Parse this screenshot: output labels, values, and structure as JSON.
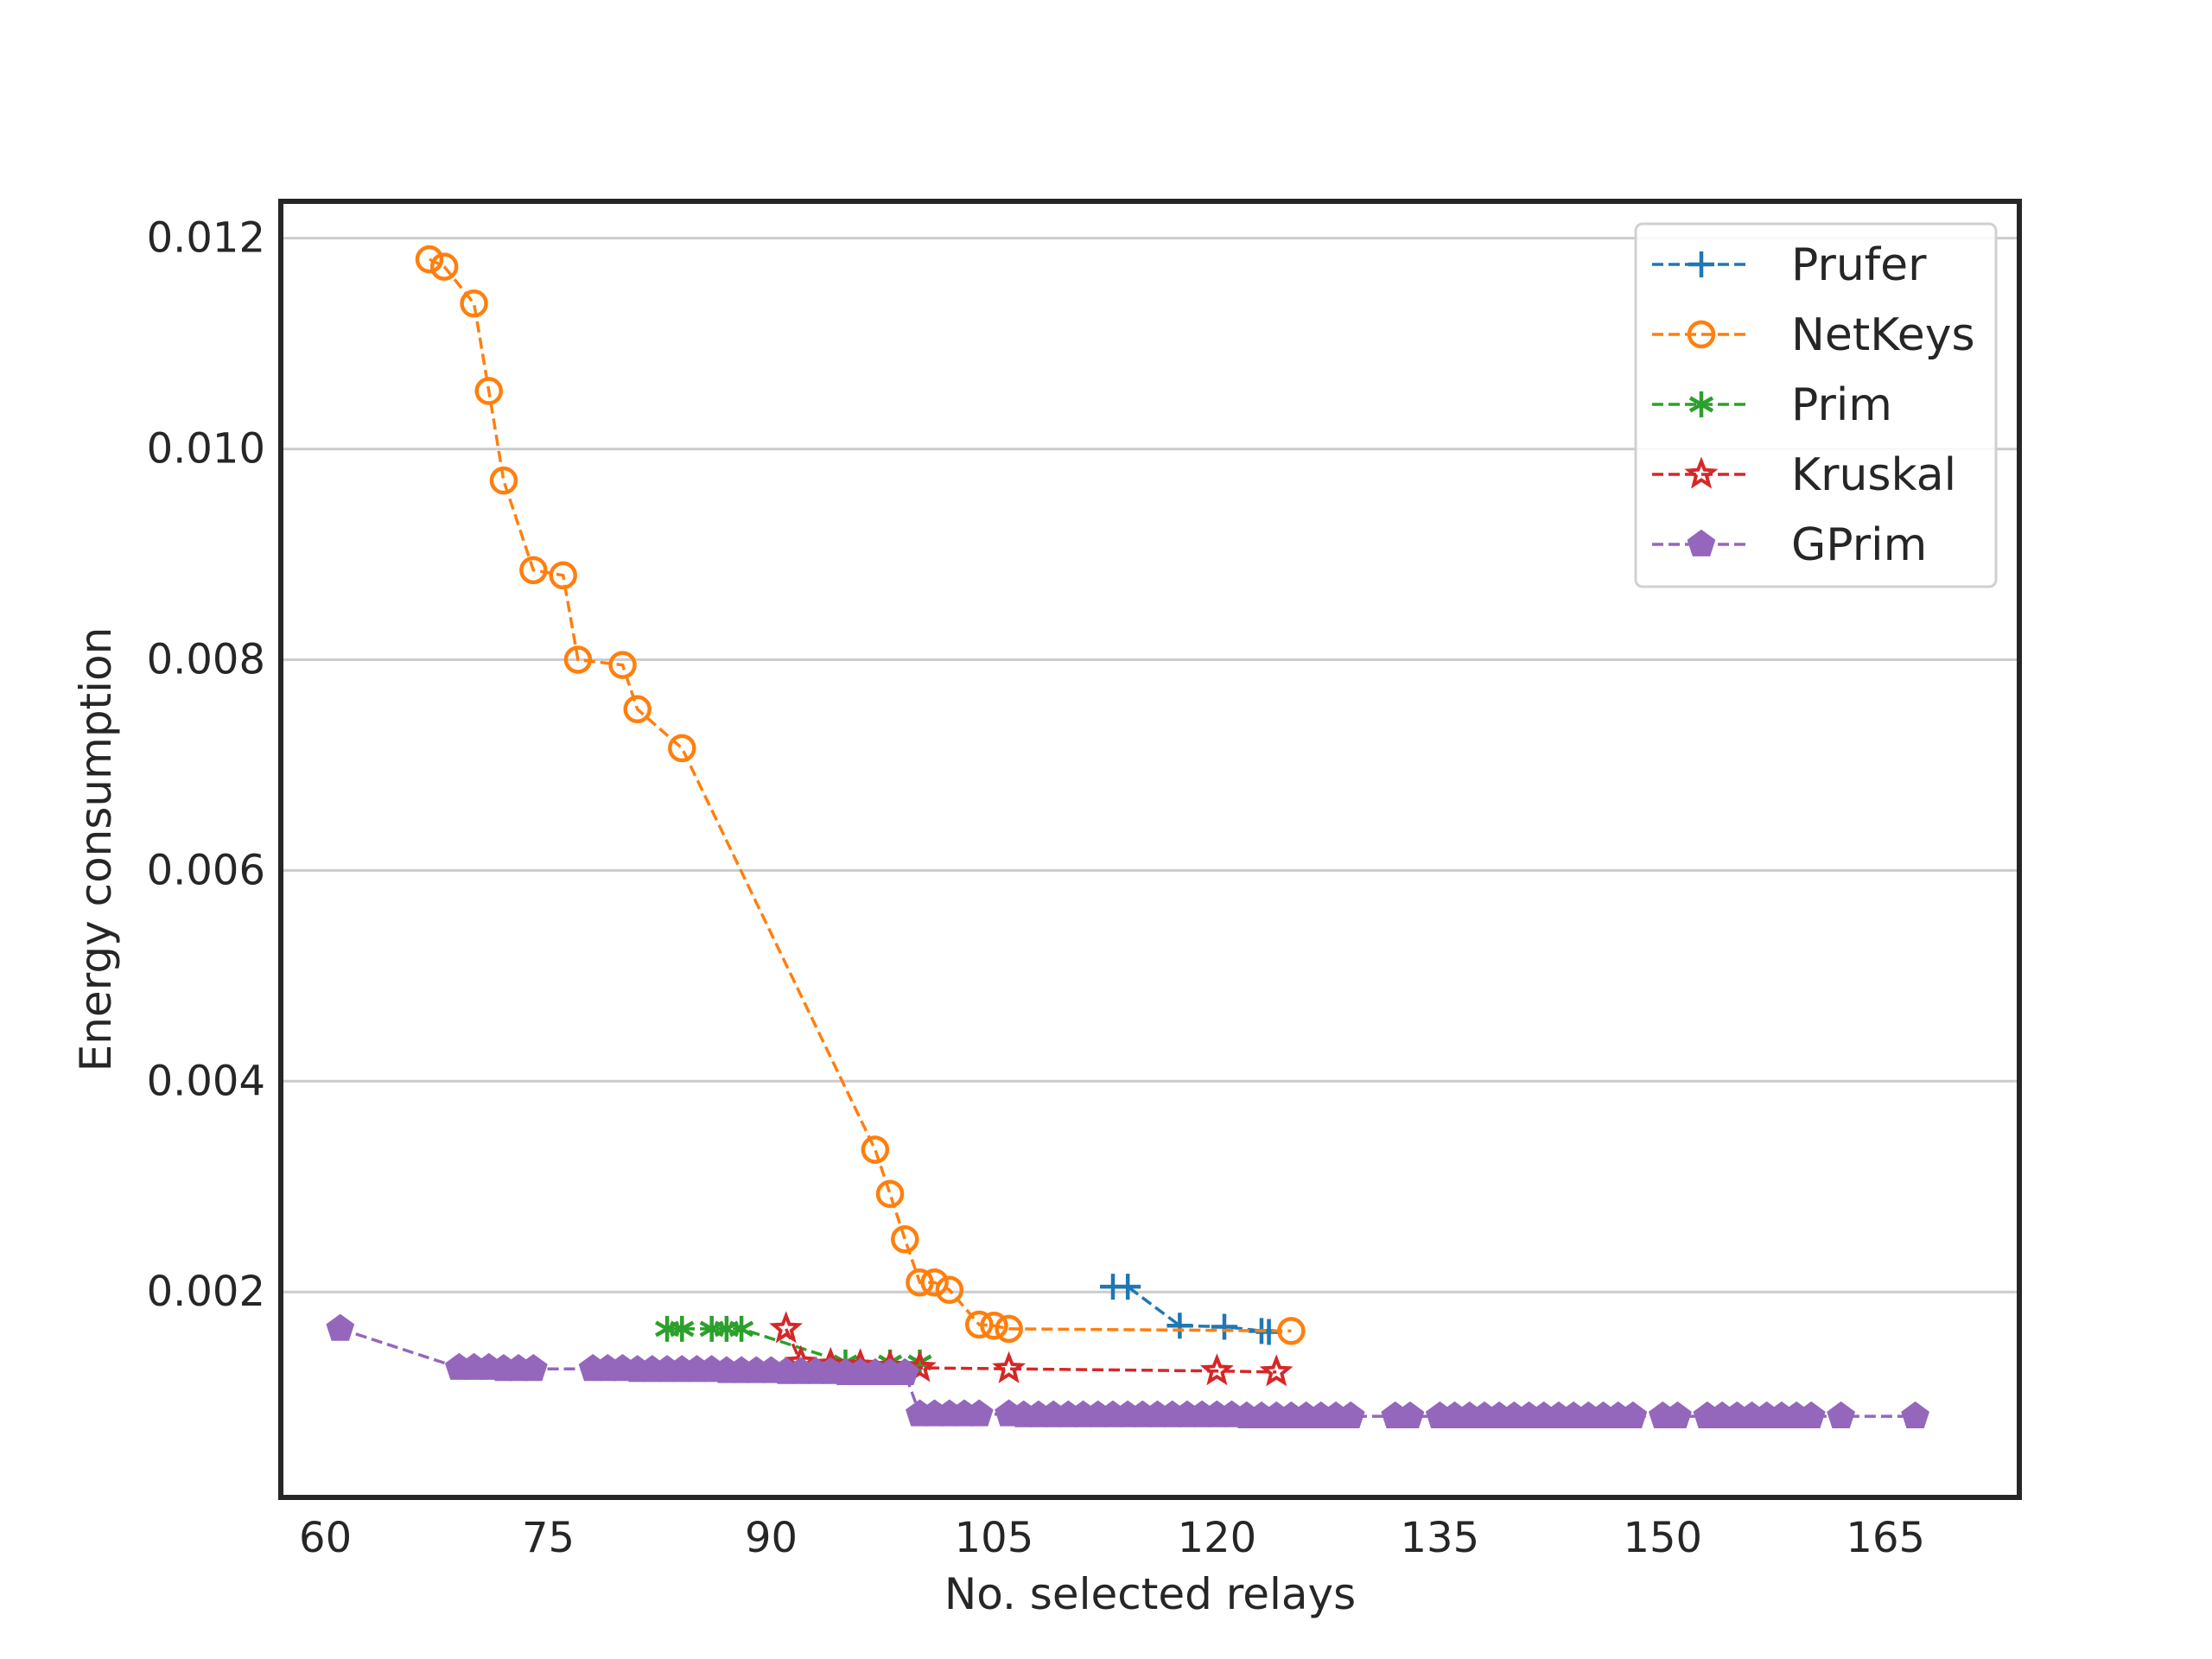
{
  "chart_data": {
    "type": "line",
    "title": "",
    "xlabel": "No. selected relays",
    "ylabel": "Energy consumption",
    "xlim": [
      57,
      174
    ],
    "ylim": [
      5e-05,
      0.01235
    ],
    "xticks": [
      60,
      75,
      90,
      105,
      120,
      135,
      150,
      165
    ],
    "yticks": [
      0.002,
      0.004,
      0.006,
      0.008,
      0.01,
      0.012
    ],
    "ytick_labels": [
      "0.002",
      "0.004",
      "0.006",
      "0.008",
      "0.010",
      "0.012"
    ],
    "grid": "horizontal",
    "legend_position": "top-right",
    "series": [
      {
        "name": "Prufer",
        "color": "#1f77b4",
        "marker": "plus",
        "x": [
          113,
          114,
          117.5,
          120.5,
          123,
          123.5
        ],
        "y": [
          0.00205,
          0.00205,
          0.00168,
          0.00167,
          0.00163,
          0.00162
        ]
      },
      {
        "name": "NetKeys",
        "color": "#ff7f0e",
        "marker": "circle",
        "x": [
          67,
          68,
          70,
          71,
          72,
          74,
          76,
          77,
          80,
          81,
          84,
          97,
          98,
          99,
          100,
          101,
          102,
          104,
          105,
          106,
          125
        ],
        "y": [
          0.0118,
          0.01173,
          0.01138,
          0.01055,
          0.0097,
          0.00885,
          0.0088,
          0.008,
          0.00795,
          0.00753,
          0.00716,
          0.00335,
          0.00293,
          0.0025,
          0.00209,
          0.00209,
          0.00202,
          0.00169,
          0.00168,
          0.00165,
          0.00163
        ]
      },
      {
        "name": "Prim",
        "color": "#2ca02c",
        "marker": "asterisk",
        "x": [
          83,
          84,
          86,
          87,
          88,
          95,
          98,
          100
        ],
        "y": [
          0.00165,
          0.00165,
          0.00165,
          0.00165,
          0.00165,
          0.00133,
          0.00133,
          0.00133
        ]
      },
      {
        "name": "Kruskal",
        "color": "#d62728",
        "marker": "star",
        "x": [
          91,
          92,
          94,
          96,
          98,
          100,
          106,
          120,
          124
        ],
        "y": [
          0.00165,
          0.00133,
          0.00131,
          0.0013,
          0.00129,
          0.00128,
          0.00127,
          0.00125,
          0.00124
        ]
      },
      {
        "name": "GPrim",
        "color": "#9467bd",
        "marker": "pentagon",
        "x": [
          61,
          69,
          70,
          71,
          72,
          73,
          74,
          78,
          79,
          80,
          81,
          82,
          83,
          84,
          85,
          86,
          87,
          88,
          89,
          90,
          91,
          92,
          93,
          94,
          95,
          96,
          97,
          98,
          99,
          100,
          101,
          102,
          103,
          104,
          106,
          107,
          108,
          109,
          110,
          111,
          112,
          113,
          114,
          115,
          116,
          117,
          118,
          119,
          120,
          121,
          122,
          123,
          124,
          125,
          126,
          127,
          128,
          129,
          132,
          133,
          135,
          136,
          137,
          138,
          139,
          140,
          141,
          142,
          143,
          144,
          145,
          146,
          147,
          148,
          150,
          151,
          153,
          154,
          155,
          156,
          157,
          158,
          159,
          160,
          162,
          167
        ],
        "y": [
          0.00165,
          0.00128,
          0.00128,
          0.00128,
          0.00127,
          0.00127,
          0.00127,
          0.00127,
          0.00127,
          0.00127,
          0.00126,
          0.00126,
          0.00126,
          0.00126,
          0.00126,
          0.00126,
          0.00125,
          0.00125,
          0.00125,
          0.00125,
          0.00124,
          0.00124,
          0.00124,
          0.00124,
          0.00123,
          0.00123,
          0.00123,
          0.00123,
          0.00123,
          0.00084,
          0.00084,
          0.00084,
          0.00084,
          0.00084,
          0.00084,
          0.00083,
          0.00083,
          0.00083,
          0.00083,
          0.00083,
          0.00083,
          0.00083,
          0.00083,
          0.00083,
          0.00083,
          0.00083,
          0.00083,
          0.00083,
          0.00083,
          0.00083,
          0.00082,
          0.00082,
          0.00082,
          0.00082,
          0.00082,
          0.00082,
          0.00082,
          0.00082,
          0.00082,
          0.00082,
          0.00082,
          0.00082,
          0.00082,
          0.00082,
          0.00082,
          0.00082,
          0.00082,
          0.00082,
          0.00082,
          0.00082,
          0.00082,
          0.00082,
          0.00082,
          0.00082,
          0.00082,
          0.00082,
          0.00082,
          0.00082,
          0.00082,
          0.00082,
          0.00082,
          0.00082,
          0.00082,
          0.00082,
          0.00082,
          0.00082
        ]
      }
    ]
  }
}
